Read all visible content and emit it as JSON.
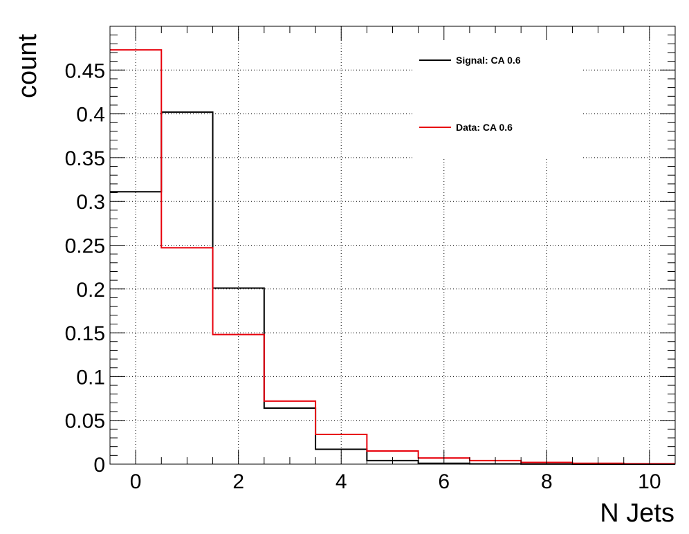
{
  "chart_data": {
    "type": "histogram",
    "xlabel": "N Jets",
    "ylabel": "count",
    "xlim": [
      -0.5,
      10.5
    ],
    "ylim": [
      0,
      0.5
    ],
    "x_ticks": [
      0,
      2,
      4,
      6,
      8,
      10
    ],
    "y_ticks": [
      0,
      0.05,
      0.1,
      0.15,
      0.2,
      0.25,
      0.3,
      0.35,
      0.4,
      0.45
    ],
    "y_tick_labels": [
      "0",
      "0.05",
      "0.1",
      "0.15",
      "0.2",
      "0.25",
      "0.3",
      "0.35",
      "0.4",
      "0.45"
    ],
    "grid": true,
    "legend_position": "top-right",
    "bin_edges": [
      -0.5,
      0.5,
      1.5,
      2.5,
      3.5,
      4.5,
      5.5,
      6.5,
      7.5,
      8.5,
      9.5,
      10.5
    ],
    "series": [
      {
        "name": "Signal: CA 0.6",
        "color": "#000000",
        "values": [
          0.311,
          0.402,
          0.201,
          0.064,
          0.017,
          0.004,
          0.001,
          0.0003,
          0.0001,
          0,
          0
        ]
      },
      {
        "name": "Data: CA 0.6",
        "color": "#e8000b",
        "values": [
          0.473,
          0.247,
          0.148,
          0.072,
          0.034,
          0.015,
          0.007,
          0.004,
          0.002,
          0.001,
          0.0005
        ]
      }
    ]
  }
}
